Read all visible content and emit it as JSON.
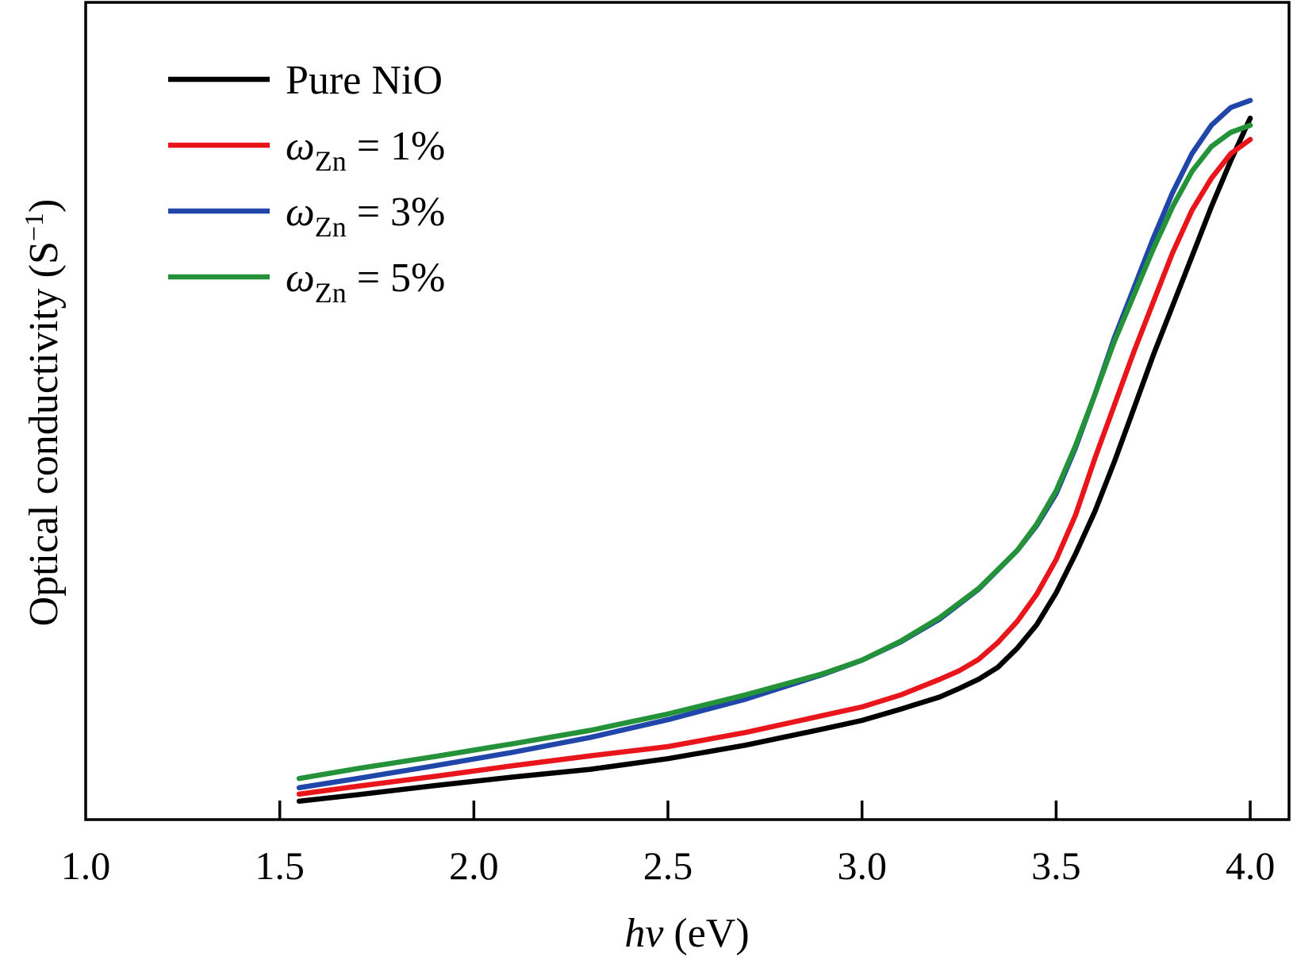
{
  "chart_data": {
    "type": "line",
    "title": "",
    "xlabel": {
      "italic": "hv",
      "rest": " (eV)"
    },
    "ylabel": {
      "main": "Optical conductivity (S",
      "sup": "−1",
      "close": ")"
    },
    "xlim": [
      1.0,
      4.1
    ],
    "ylim": [
      0,
      100
    ],
    "y_ticks_visible": false,
    "grid": false,
    "legend_position": "top-left",
    "x_ticks": [
      "1.0",
      "1.5",
      "2.0",
      "2.5",
      "3.0",
      "3.5",
      "4.0"
    ],
    "series": [
      {
        "name": "Pure NiO",
        "legend": {
          "prefix": "Pure NiO",
          "sub": "",
          "suffix": ""
        },
        "color": "#000000",
        "points": [
          [
            1.55,
            2.6
          ],
          [
            1.7,
            3.5
          ],
          [
            1.9,
            4.8
          ],
          [
            2.1,
            6.0
          ],
          [
            2.3,
            7.1
          ],
          [
            2.5,
            8.6
          ],
          [
            2.7,
            10.5
          ],
          [
            2.9,
            12.8
          ],
          [
            3.0,
            14.0
          ],
          [
            3.1,
            15.6
          ],
          [
            3.2,
            17.3
          ],
          [
            3.25,
            18.5
          ],
          [
            3.3,
            19.8
          ],
          [
            3.35,
            21.5
          ],
          [
            3.4,
            24.2
          ],
          [
            3.45,
            27.5
          ],
          [
            3.5,
            32.0
          ],
          [
            3.55,
            37.5
          ],
          [
            3.6,
            43.5
          ],
          [
            3.65,
            50.5
          ],
          [
            3.7,
            58.0
          ],
          [
            3.75,
            65.5
          ],
          [
            3.8,
            72.5
          ],
          [
            3.85,
            79.5
          ],
          [
            3.9,
            86.5
          ],
          [
            3.95,
            93.0
          ],
          [
            4.0,
            99.0
          ]
        ]
      },
      {
        "name": "ωZn = 1%",
        "legend": {
          "prefix": "ω",
          "sub": "Zn",
          "suffix": " = 1%"
        },
        "color": "#e8151b",
        "points": [
          [
            1.55,
            3.6
          ],
          [
            1.7,
            4.7
          ],
          [
            1.9,
            6.1
          ],
          [
            2.1,
            7.6
          ],
          [
            2.3,
            9.0
          ],
          [
            2.5,
            10.3
          ],
          [
            2.7,
            12.3
          ],
          [
            2.9,
            14.7
          ],
          [
            3.0,
            15.9
          ],
          [
            3.1,
            17.6
          ],
          [
            3.2,
            19.8
          ],
          [
            3.25,
            21.0
          ],
          [
            3.3,
            22.6
          ],
          [
            3.35,
            25.0
          ],
          [
            3.4,
            28.0
          ],
          [
            3.45,
            31.8
          ],
          [
            3.5,
            36.7
          ],
          [
            3.55,
            43.0
          ],
          [
            3.6,
            51.0
          ],
          [
            3.65,
            58.5
          ],
          [
            3.7,
            66.0
          ],
          [
            3.75,
            73.0
          ],
          [
            3.8,
            80.0
          ],
          [
            3.85,
            86.0
          ],
          [
            3.9,
            90.5
          ],
          [
            3.95,
            94.0
          ],
          [
            4.0,
            96.0
          ]
        ]
      },
      {
        "name": "ωZn = 3%",
        "legend": {
          "prefix": "ω",
          "sub": "Zn",
          "suffix": " = 3%"
        },
        "color": "#1f46a8",
        "points": [
          [
            1.55,
            4.5
          ],
          [
            1.7,
            5.8
          ],
          [
            1.9,
            7.6
          ],
          [
            2.1,
            9.5
          ],
          [
            2.3,
            11.6
          ],
          [
            2.5,
            14.1
          ],
          [
            2.7,
            17.0
          ],
          [
            2.9,
            20.5
          ],
          [
            3.0,
            22.5
          ],
          [
            3.1,
            25.1
          ],
          [
            3.2,
            28.3
          ],
          [
            3.3,
            32.5
          ],
          [
            3.4,
            38.0
          ],
          [
            3.45,
            41.5
          ],
          [
            3.5,
            46.0
          ],
          [
            3.55,
            52.5
          ],
          [
            3.6,
            60.0
          ],
          [
            3.65,
            68.0
          ],
          [
            3.7,
            75.0
          ],
          [
            3.75,
            82.0
          ],
          [
            3.8,
            88.5
          ],
          [
            3.85,
            94.0
          ],
          [
            3.9,
            98.0
          ],
          [
            3.95,
            100.5
          ],
          [
            4.0,
            101.5
          ]
        ]
      },
      {
        "name": "ωZn = 5%",
        "legend": {
          "prefix": "ω",
          "sub": "Zn",
          "suffix": " = 5%"
        },
        "color": "#239238",
        "points": [
          [
            1.55,
            5.8
          ],
          [
            1.7,
            7.2
          ],
          [
            1.9,
            8.9
          ],
          [
            2.1,
            10.7
          ],
          [
            2.3,
            12.6
          ],
          [
            2.5,
            14.9
          ],
          [
            2.7,
            17.6
          ],
          [
            2.9,
            20.6
          ],
          [
            3.0,
            22.5
          ],
          [
            3.1,
            25.2
          ],
          [
            3.2,
            28.5
          ],
          [
            3.3,
            32.6
          ],
          [
            3.4,
            38.0
          ],
          [
            3.45,
            41.7
          ],
          [
            3.5,
            46.4
          ],
          [
            3.55,
            52.8
          ],
          [
            3.6,
            60.0
          ],
          [
            3.65,
            67.5
          ],
          [
            3.7,
            74.0
          ],
          [
            3.75,
            80.5
          ],
          [
            3.8,
            86.5
          ],
          [
            3.85,
            91.5
          ],
          [
            3.9,
            95.0
          ],
          [
            3.95,
            97.0
          ],
          [
            4.0,
            98.0
          ]
        ]
      }
    ]
  }
}
